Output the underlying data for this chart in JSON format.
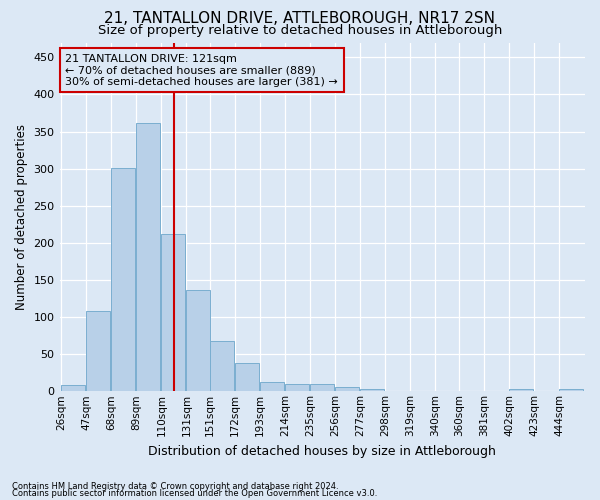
{
  "title": "21, TANTALLON DRIVE, ATTLEBOROUGH, NR17 2SN",
  "subtitle": "Size of property relative to detached houses in Attleborough",
  "xlabel": "Distribution of detached houses by size in Attleborough",
  "ylabel": "Number of detached properties",
  "footnote1": "Contains HM Land Registry data © Crown copyright and database right 2024.",
  "footnote2": "Contains public sector information licensed under the Open Government Licence v3.0.",
  "bar_edges": [
    26,
    47,
    68,
    89,
    110,
    131,
    151,
    172,
    193,
    214,
    235,
    256,
    277,
    298,
    319,
    340,
    360,
    381,
    402,
    423,
    444
  ],
  "bar_heights": [
    8,
    108,
    301,
    362,
    212,
    136,
    68,
    38,
    13,
    10,
    10,
    6,
    3,
    0,
    0,
    0,
    0,
    0,
    3,
    0,
    3
  ],
  "bar_color": "#b8d0e8",
  "bar_edgecolor": "#7aaed0",
  "vline_x": 121,
  "vline_color": "#cc0000",
  "annotation_line1": "21 TANTALLON DRIVE: 121sqm",
  "annotation_line2": "← 70% of detached houses are smaller (889)",
  "annotation_line3": "30% of semi-detached houses are larger (381) →",
  "annotation_box_edgecolor": "#cc0000",
  "ylim": [
    0,
    470
  ],
  "yticks": [
    0,
    50,
    100,
    150,
    200,
    250,
    300,
    350,
    400,
    450
  ],
  "background_color": "#dce8f5",
  "grid_color": "#ffffff",
  "title_fontsize": 11,
  "subtitle_fontsize": 9.5,
  "xlabel_fontsize": 9,
  "ylabel_fontsize": 8.5,
  "tick_fontsize": 7.5,
  "footnote_fontsize": 6
}
